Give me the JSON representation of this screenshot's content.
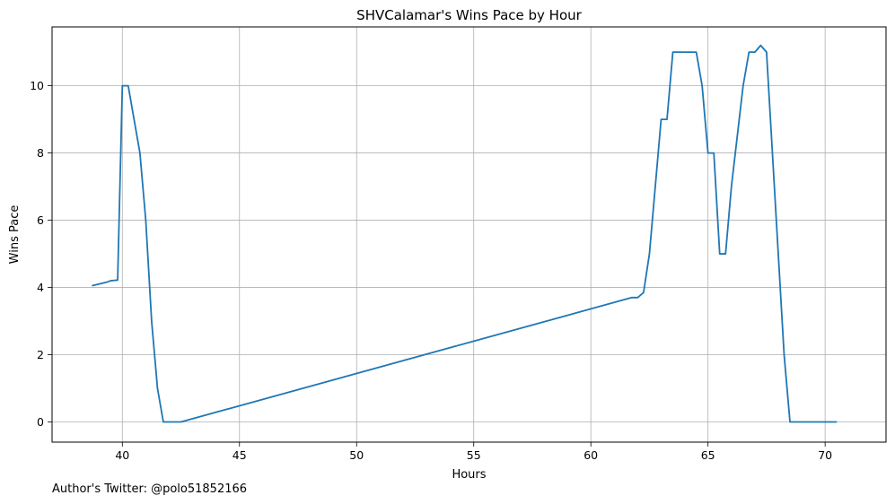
{
  "chart_data": {
    "type": "line",
    "title": "SHVCalamar's Wins Pace by Hour",
    "xlabel": "Hours",
    "ylabel": "Wins Pace",
    "xlim": [
      37,
      72.6
    ],
    "ylim": [
      -0.6,
      11.75
    ],
    "xticks": [
      40,
      45,
      50,
      55,
      60,
      65,
      70
    ],
    "yticks": [
      0,
      2,
      4,
      6,
      8,
      10
    ],
    "grid": true,
    "line_color": "#1f77b4",
    "series": [
      {
        "x": [
          38.7,
          39.0,
          39.3,
          39.5,
          39.8,
          40.0,
          40.25,
          40.5,
          40.75,
          41.0,
          41.25,
          41.5,
          41.75,
          42.0,
          42.25,
          42.5,
          61.75,
          62.0,
          62.25,
          62.5,
          63.0,
          63.25,
          63.5,
          64.0,
          64.5,
          64.75,
          65.0,
          65.25,
          65.5,
          65.75,
          66.0,
          66.25,
          66.5,
          66.75,
          67.0,
          67.25,
          67.5,
          68.0,
          68.25,
          68.5,
          69.0,
          70.5
        ],
        "y": [
          4.05,
          4.1,
          4.15,
          4.2,
          4.22,
          10.0,
          10.0,
          9.0,
          8.0,
          6.0,
          3.0,
          1.0,
          0.0,
          0.0,
          0.0,
          0.0,
          3.7,
          3.7,
          3.85,
          5.0,
          9.0,
          9.0,
          11.0,
          11.0,
          11.0,
          10.0,
          8.0,
          8.0,
          5.0,
          5.0,
          7.0,
          8.5,
          10.0,
          11.0,
          11.0,
          11.2,
          11.0,
          5.0,
          2.0,
          0.0,
          0.0,
          0.0
        ]
      }
    ]
  },
  "footer": {
    "note": "Author's Twitter: @polo51852166"
  }
}
